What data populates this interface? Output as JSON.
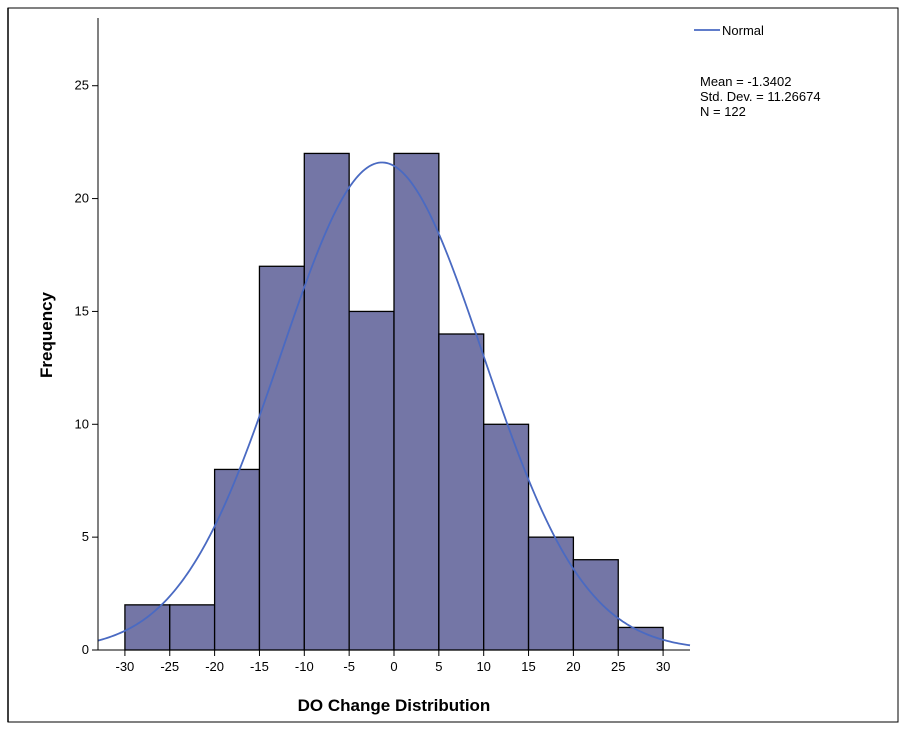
{
  "chart_data": {
    "type": "bar",
    "subtype": "histogram",
    "xlabel": "DO Change Distribution",
    "ylabel": "Frequency",
    "bins": [
      {
        "from": -30,
        "to": -25,
        "count": 2
      },
      {
        "from": -25,
        "to": -20,
        "count": 2
      },
      {
        "from": -20,
        "to": -15,
        "count": 8
      },
      {
        "from": -15,
        "to": -10,
        "count": 17
      },
      {
        "from": -10,
        "to": -5,
        "count": 22
      },
      {
        "from": -5,
        "to": 0,
        "count": 15
      },
      {
        "from": 0,
        "to": 5,
        "count": 22
      },
      {
        "from": 5,
        "to": 10,
        "count": 14
      },
      {
        "from": 10,
        "to": 15,
        "count": 10
      },
      {
        "from": 15,
        "to": 20,
        "count": 5
      },
      {
        "from": 20,
        "to": 25,
        "count": 4
      },
      {
        "from": 25,
        "to": 30,
        "count": 1
      }
    ],
    "xlim": [
      -33,
      33
    ],
    "ylim": [
      0,
      28
    ],
    "xticks": [
      "-30",
      "-25",
      "-20",
      "-15",
      "-10",
      "-5",
      "0",
      "5",
      "10",
      "15",
      "20",
      "25",
      "30"
    ],
    "yticks": [
      "0",
      "5",
      "10",
      "15",
      "20",
      "25"
    ],
    "normal_curve": {
      "name": "Normal",
      "mean": -1.3402,
      "std": 11.26674,
      "n": 122,
      "bin_width": 5
    },
    "legend": {
      "position": "top-right",
      "entries": [
        "Normal"
      ]
    },
    "stats": [
      "Mean = -1.3402",
      "Std. Dev. = 11.26674",
      "N = 122"
    ],
    "grid": false,
    "colors": {
      "bar_fill": "#7476a6",
      "bar_edge": "#000000",
      "curve": "#4a6ac2"
    }
  }
}
